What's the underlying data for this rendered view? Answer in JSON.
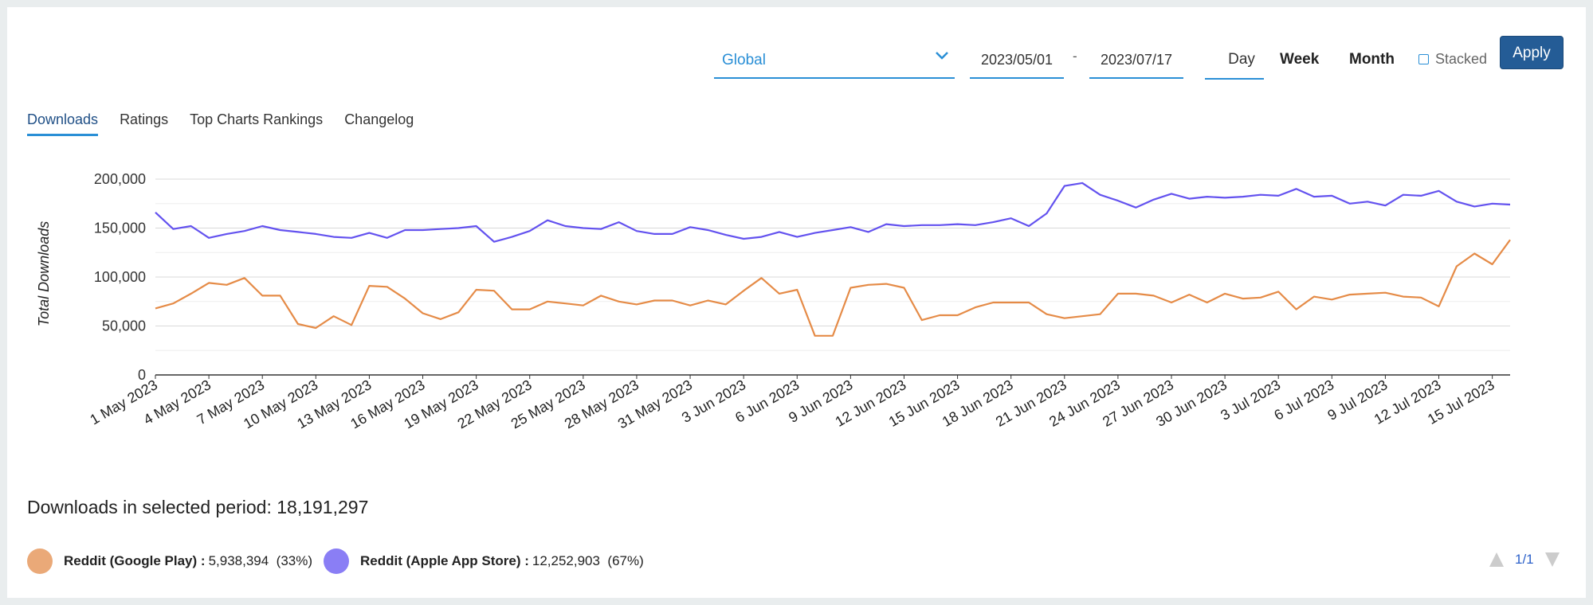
{
  "controls": {
    "region": "Global",
    "start_date": "2023/05/01",
    "date_separator": "-",
    "end_date": "2023/07/17",
    "periods": [
      "Day",
      "Week",
      "Month"
    ],
    "active_period": "Day",
    "stacked_label": "Stacked",
    "apply_label": "Apply"
  },
  "tabs": [
    "Downloads",
    "Ratings",
    "Top Charts Rankings",
    "Changelog"
  ],
  "summary": {
    "label": "Downloads in selected period:",
    "total": "18,191,297"
  },
  "legend": [
    {
      "name": "Reddit (Google Play) :",
      "value": "5,938,394",
      "pct": "(33%)",
      "color": "#eaa978"
    },
    {
      "name": "Reddit (Apple App Store) :",
      "value": "12,252,903",
      "pct": "(67%)",
      "color": "#8a7ef5"
    }
  ],
  "pager": "1/1",
  "colors": {
    "accent": "#2a8fd6",
    "apply": "#245c96",
    "google": "#e58b47",
    "apple": "#6352ef"
  },
  "chart_data": {
    "type": "line",
    "title": "",
    "xlabel": "",
    "ylabel": "Total Downloads",
    "ylim": [
      0,
      200000
    ],
    "yticks": [
      0,
      50000,
      100000,
      150000,
      200000
    ],
    "ytick_labels": [
      "0",
      "50,000",
      "100,000",
      "150,000",
      "200,000"
    ],
    "grid": true,
    "x_tick_labels": [
      "1 May 2023",
      "4 May 2023",
      "7 May 2023",
      "10 May 2023",
      "13 May 2023",
      "16 May 2023",
      "19 May 2023",
      "22 May 2023",
      "25 May 2023",
      "28 May 2023",
      "31 May 2023",
      "3 Jun 2023",
      "6 Jun 2023",
      "9 Jun 2023",
      "12 Jun 2023",
      "15 Jun 2023",
      "18 Jun 2023",
      "21 Jun 2023",
      "24 Jun 2023",
      "27 Jun 2023",
      "30 Jun 2023",
      "3 Jul 2023",
      "6 Jul 2023",
      "9 Jul 2023",
      "12 Jul 2023",
      "15 Jul 2023"
    ],
    "x_tick_every": 3,
    "x_start": "2023-05-01",
    "x_end": "2023-07-17",
    "series": [
      {
        "name": "Reddit (Apple App Store)",
        "color": "#6352ef",
        "values": [
          166000,
          149000,
          152000,
          140000,
          144000,
          147000,
          152000,
          148000,
          146000,
          144000,
          141000,
          140000,
          145000,
          140000,
          148000,
          148000,
          149000,
          150000,
          152000,
          136000,
          141000,
          147000,
          158000,
          152000,
          150000,
          149000,
          156000,
          147000,
          144000,
          144000,
          151000,
          148000,
          143000,
          139000,
          141000,
          146000,
          141000,
          145000,
          148000,
          151000,
          146000,
          154000,
          152000,
          153000,
          153000,
          154000,
          153000,
          156000,
          160000,
          152000,
          165000,
          193000,
          196000,
          184000,
          178000,
          171000,
          179000,
          185000,
          180000,
          182000,
          181000,
          182000,
          184000,
          183000,
          190000,
          182000,
          183000,
          175000,
          177000,
          173000,
          184000,
          183000,
          188000,
          177000,
          172000,
          175000,
          174000
        ]
      },
      {
        "name": "Reddit (Google Play)",
        "color": "#e58b47",
        "values": [
          68000,
          73000,
          83000,
          94000,
          92000,
          99000,
          81000,
          81000,
          52000,
          48000,
          60000,
          51000,
          91000,
          90000,
          78000,
          63000,
          57000,
          64000,
          87000,
          86000,
          67000,
          67000,
          75000,
          73000,
          71000,
          81000,
          75000,
          72000,
          76000,
          76000,
          71000,
          76000,
          72000,
          86000,
          99000,
          83000,
          87000,
          40000,
          40000,
          89000,
          92000,
          93000,
          89000,
          56000,
          61000,
          61000,
          69000,
          74000,
          74000,
          74000,
          62000,
          58000,
          60000,
          62000,
          83000,
          83000,
          81000,
          74000,
          82000,
          74000,
          83000,
          78000,
          79000,
          85000,
          67000,
          80000,
          77000,
          82000,
          83000,
          84000,
          80000,
          79000,
          70000,
          111000,
          124000,
          113000,
          138000
        ]
      }
    ]
  }
}
